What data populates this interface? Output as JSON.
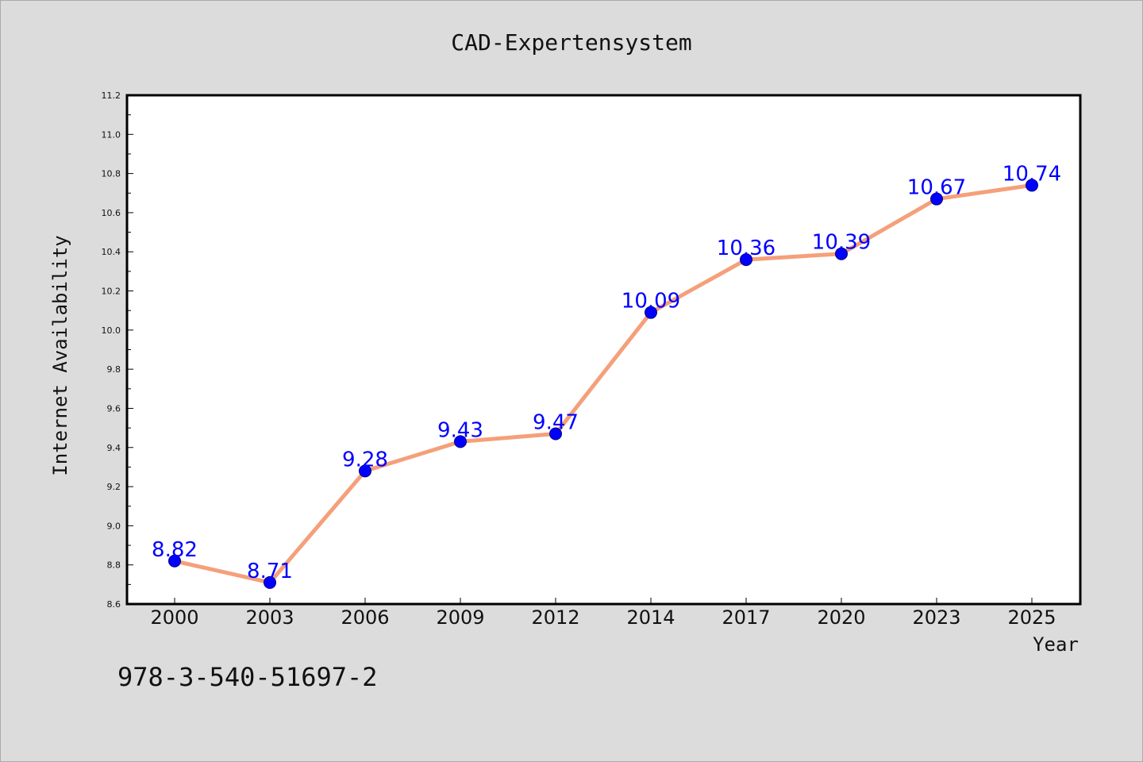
{
  "chart_data": {
    "type": "line",
    "title": "CAD-Expertensystem",
    "xlabel": "Year",
    "ylabel": "Internet Availability",
    "categories": [
      "2000",
      "2003",
      "2006",
      "2009",
      "2012",
      "2014",
      "2017",
      "2020",
      "2023",
      "2025"
    ],
    "series": [
      {
        "values": [
          8.82,
          8.71,
          9.28,
          9.43,
          9.47,
          10.09,
          10.36,
          10.39,
          10.67,
          10.74
        ]
      }
    ],
    "data_labels": [
      "8.82",
      "8.71",
      "9.28",
      "9.43",
      "9.47",
      "10.09",
      "10.36",
      "10.39",
      "10.67",
      "10.74"
    ],
    "ylim": [
      8.6,
      11.2
    ],
    "yticks": [
      "8.6",
      "8.8",
      "9.0",
      "9.2",
      "9.4",
      "9.6",
      "9.8",
      "10.0",
      "10.2",
      "10.4",
      "10.6",
      "10.8",
      "11.0",
      "11.2"
    ],
    "grid": false,
    "legend": "none",
    "colors": {
      "line": "#f4a07a",
      "marker": "#0000ff",
      "marker_edge": "#000080",
      "label": "#0000ff",
      "background": "#dcdcdc",
      "plot_background": "#ffffff"
    }
  },
  "footer": {
    "isbn": "978-3-540-51697-2"
  }
}
